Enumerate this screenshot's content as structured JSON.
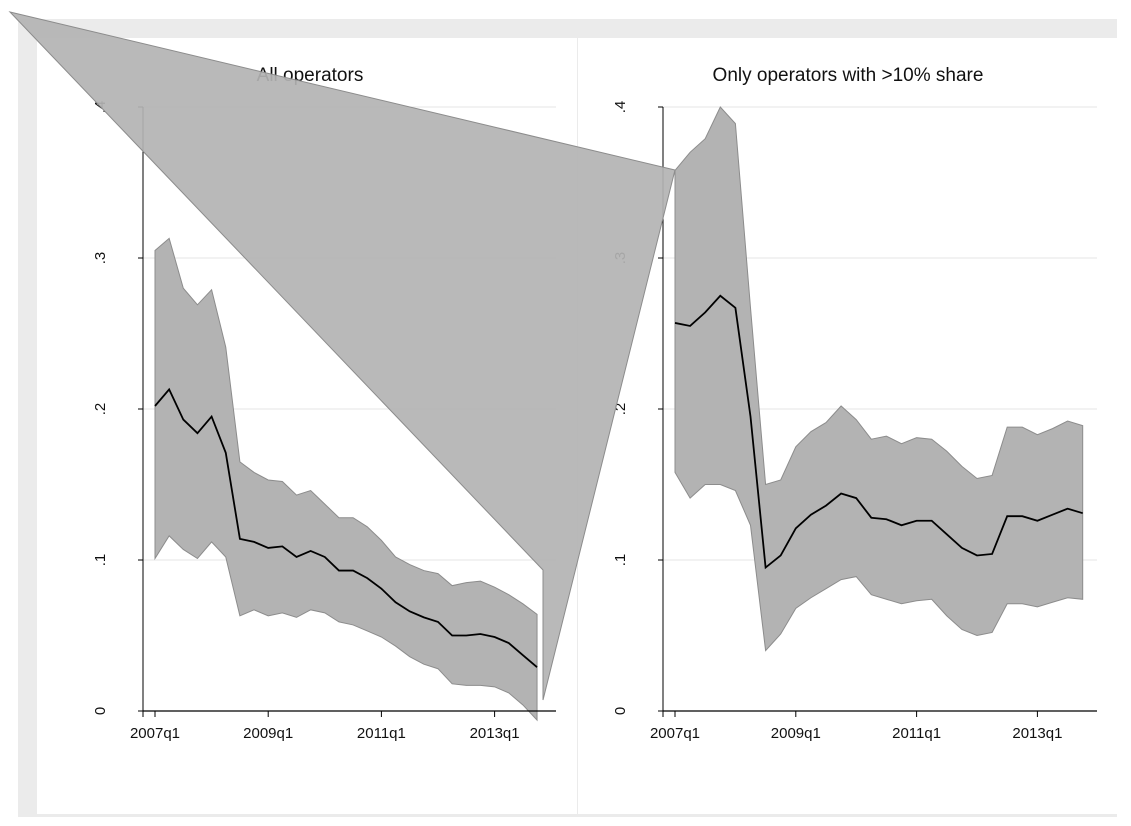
{
  "chart_data": [
    {
      "type": "area",
      "title": "All operators",
      "xlabel": "",
      "ylabel": "",
      "x_tick_labels": [
        "2007q1",
        "2009q1",
        "2011q1",
        "2013q1"
      ],
      "y_tick_labels": [
        "0",
        ".1",
        ".2",
        ".3",
        ".4"
      ],
      "ylim": [
        0,
        0.4
      ],
      "grid": true,
      "x": [
        "2007q1",
        "2007q2",
        "2007q3",
        "2007q4",
        "2008q1",
        "2008q2",
        "2008q3",
        "2008q4",
        "2009q1",
        "2009q2",
        "2009q3",
        "2009q4",
        "2010q1",
        "2010q2",
        "2010q3",
        "2010q4",
        "2011q1",
        "2011q2",
        "2011q3",
        "2011q4",
        "2012q1",
        "2012q2",
        "2012q3",
        "2012q4",
        "2013q1",
        "2013q2",
        "2013q3",
        "2013q4"
      ],
      "series": [
        {
          "role": "estimate",
          "values": [
            0.202,
            0.213,
            0.193,
            0.184,
            0.195,
            0.171,
            0.114,
            0.112,
            0.108,
            0.109,
            0.102,
            0.106,
            0.102,
            0.093,
            0.093,
            0.088,
            0.081,
            0.072,
            0.066,
            0.062,
            0.059,
            0.05,
            0.05,
            0.051,
            0.049,
            0.045,
            0.037,
            0.029
          ]
        },
        {
          "role": "upper",
          "values": [
            0.305,
            0.313,
            0.28,
            0.269,
            0.279,
            0.241,
            0.165,
            0.158,
            0.153,
            0.152,
            0.143,
            0.146,
            0.137,
            0.128,
            0.128,
            0.122,
            0.113,
            0.102,
            0.097,
            0.093,
            0.091,
            0.083,
            0.085,
            0.086,
            0.082,
            0.077,
            0.071,
            0.064
          ]
        },
        {
          "role": "lower",
          "values": [
            0.101,
            0.116,
            0.107,
            0.101,
            0.112,
            0.102,
            0.063,
            0.067,
            0.063,
            0.065,
            0.062,
            0.067,
            0.065,
            0.059,
            0.057,
            0.053,
            0.049,
            0.043,
            0.036,
            0.031,
            0.028,
            0.018,
            0.017,
            0.017,
            0.016,
            0.012,
            0.004,
            -0.006
          ]
        }
      ]
    },
    {
      "type": "area",
      "title": "Only operators with >10% share",
      "xlabel": "",
      "ylabel": "",
      "x_tick_labels": [
        "2007q1",
        "2009q1",
        "2011q1",
        "2013q1"
      ],
      "y_tick_labels": [
        "0",
        ".1",
        ".2",
        ".3",
        ".4"
      ],
      "ylim": [
        0,
        0.4
      ],
      "grid": true,
      "x": [
        "2007q1",
        "2007q2",
        "2007q3",
        "2007q4",
        "2008q1",
        "2008q2",
        "2008q3",
        "2008q4",
        "2009q1",
        "2009q2",
        "2009q3",
        "2009q4",
        "2010q1",
        "2010q2",
        "2010q3",
        "2010q4",
        "2011q1",
        "2011q2",
        "2011q3",
        "2011q4",
        "2012q1",
        "2012q2",
        "2012q3",
        "2012q4",
        "2013q1",
        "2013q2",
        "2013q3",
        "2013q4"
      ],
      "series": [
        {
          "role": "estimate",
          "values": [
            0.257,
            0.255,
            0.264,
            0.275,
            0.267,
            0.195,
            0.095,
            0.103,
            0.121,
            0.13,
            0.136,
            0.144,
            0.141,
            0.128,
            0.127,
            0.123,
            0.126,
            0.126,
            0.117,
            0.108,
            0.103,
            0.104,
            0.129,
            0.129,
            0.126,
            0.13,
            0.134,
            0.131
          ]
        },
        {
          "role": "upper",
          "values": [
            0.358,
            0.37,
            0.379,
            0.4,
            0.389,
            0.267,
            0.15,
            0.153,
            0.175,
            0.185,
            0.191,
            0.202,
            0.193,
            0.18,
            0.182,
            0.177,
            0.181,
            0.18,
            0.172,
            0.162,
            0.154,
            0.156,
            0.188,
            0.188,
            0.183,
            0.187,
            0.192,
            0.189
          ]
        },
        {
          "role": "lower",
          "values": [
            0.158,
            0.141,
            0.15,
            0.15,
            0.146,
            0.123,
            0.04,
            0.051,
            0.068,
            0.075,
            0.081,
            0.087,
            0.089,
            0.077,
            0.074,
            0.071,
            0.073,
            0.074,
            0.063,
            0.054,
            0.05,
            0.052,
            0.071,
            0.071,
            0.069,
            0.072,
            0.075,
            0.074
          ]
        }
      ]
    }
  ],
  "colors": {
    "outer_background": "#ebebeb",
    "panel_background": "#ffffff",
    "band_fill": "#b3b3b3",
    "band_stroke": "#8c8c8c",
    "line": "#000000",
    "grid": "#e6e6e6"
  }
}
